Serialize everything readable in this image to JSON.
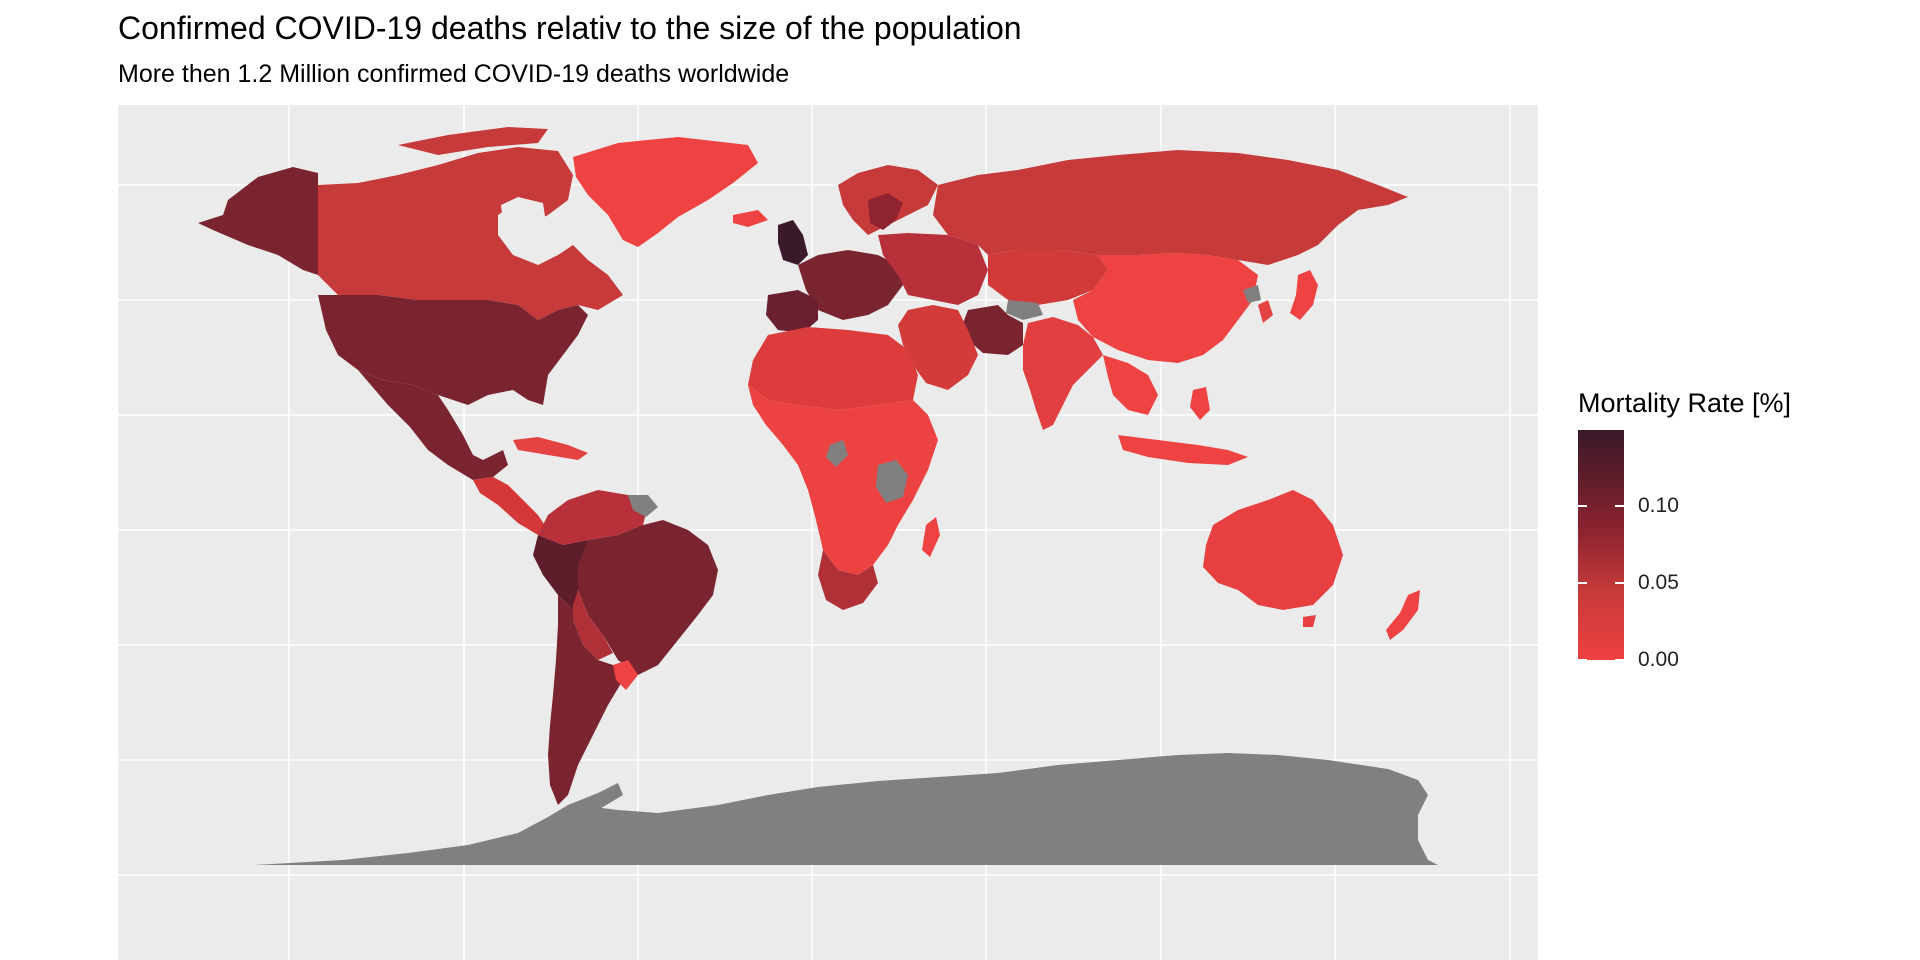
{
  "title": "Confirmed COVID-19 deaths relativ to the size of the population",
  "subtitle": "More then 1.2 Million confirmed COVID-19 deaths worldwide",
  "legend": {
    "title": "Mortality Rate [%]",
    "ticks": [
      {
        "label": "0.10",
        "value": 0.1
      },
      {
        "label": "0.05",
        "value": 0.05
      },
      {
        "label": "0.00",
        "value": 0.0
      }
    ],
    "range": [
      0.0,
      0.15
    ],
    "colors": {
      "low": "#ef4040",
      "mid": "#8f2430",
      "high": "#3a1a2a"
    }
  },
  "colors": {
    "panel": "#ebebeb",
    "grid": "#ffffff",
    "no_data": "#808080"
  },
  "regions": [
    {
      "name": "Canada",
      "rate": 0.03
    },
    {
      "name": "USA",
      "rate": 0.07
    },
    {
      "name": "Alaska",
      "rate": 0.07
    },
    {
      "name": "Greenland",
      "rate": 0.0
    },
    {
      "name": "Mexico",
      "rate": 0.07
    },
    {
      "name": "Central America",
      "rate": 0.02
    },
    {
      "name": "Caribbean",
      "rate": 0.01
    },
    {
      "name": "Colombia/Venezuela",
      "rate": 0.05
    },
    {
      "name": "Brazil",
      "rate": 0.07
    },
    {
      "name": "Peru",
      "rate": 0.12
    },
    {
      "name": "Bolivia/Paraguay",
      "rate": 0.04
    },
    {
      "name": "Argentina/Chile",
      "rate": 0.08
    },
    {
      "name": "Uruguay",
      "rate": 0.0
    },
    {
      "name": "Scandinavia",
      "rate": 0.02
    },
    {
      "name": "Sweden",
      "rate": 0.06
    },
    {
      "name": "UK",
      "rate": 0.1
    },
    {
      "name": "Western Europe",
      "rate": 0.07
    },
    {
      "name": "Spain",
      "rate": 0.08
    },
    {
      "name": "Eastern Europe",
      "rate": 0.03
    },
    {
      "name": "Russia",
      "rate": 0.02
    },
    {
      "name": "Central Asia",
      "rate": 0.01
    },
    {
      "name": "China",
      "rate": 0.0
    },
    {
      "name": "Iran",
      "rate": 0.05
    },
    {
      "name": "Middle East",
      "rate": 0.02
    },
    {
      "name": "India",
      "rate": 0.01
    },
    {
      "name": "Southeast Asia",
      "rate": 0.0
    },
    {
      "name": "Japan",
      "rate": 0.0
    },
    {
      "name": "North Africa",
      "rate": 0.01
    },
    {
      "name": "Sub-Saharan Africa",
      "rate": 0.0
    },
    {
      "name": "South Africa",
      "rate": 0.03
    },
    {
      "name": "Madagascar",
      "rate": 0.0
    },
    {
      "name": "Australia",
      "rate": 0.0
    },
    {
      "name": "New Zealand",
      "rate": 0.0
    },
    {
      "name": "Tanzania",
      "rate": null
    },
    {
      "name": "Afghanistan",
      "rate": null
    },
    {
      "name": "Antarctica",
      "rate": null
    }
  ]
}
